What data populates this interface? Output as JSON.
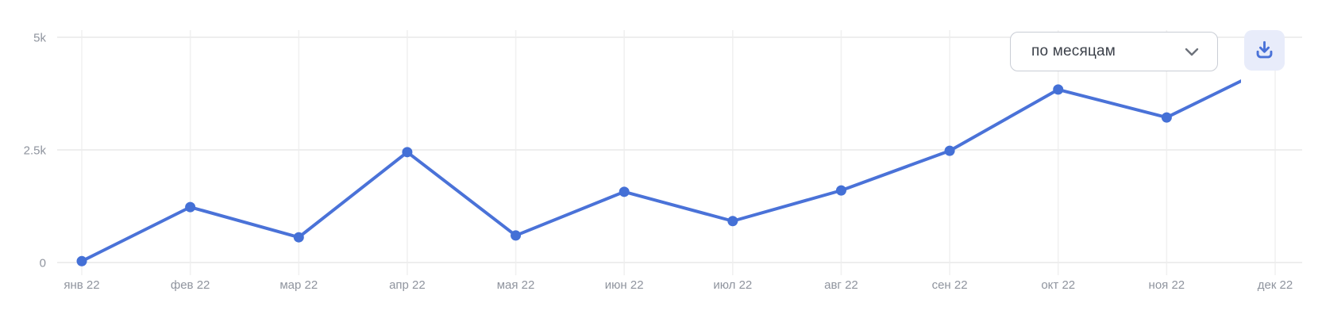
{
  "controls": {
    "period_dropdown": {
      "label": "по месяцам",
      "icon": "chevron-down-icon"
    },
    "download_button": {
      "icon": "download-icon"
    }
  },
  "chart_data": {
    "type": "line",
    "title": "",
    "xlabel": "",
    "ylabel": "",
    "categories": [
      "янв 22",
      "фев 22",
      "мар 22",
      "апр 22",
      "мая 22",
      "июн 22",
      "июл 22",
      "авг 22",
      "сен 22",
      "окт 22",
      "ноя 22",
      "дек 22"
    ],
    "series": [
      {
        "name": "",
        "values": [
          30,
          1230,
          560,
          2450,
          600,
          1570,
          920,
          1600,
          2480,
          3840,
          3220,
          4400
        ]
      }
    ],
    "ylim": [
      0,
      5000
    ],
    "yticks": [
      {
        "value": 0,
        "label": "0"
      },
      {
        "value": 2500,
        "label": "2.5k"
      },
      {
        "value": 5000,
        "label": "5k"
      }
    ],
    "grid": true,
    "legend_position": "none",
    "marker_on_last_point": false,
    "colors": {
      "line": "#4a72d8",
      "marker": "#4470d6",
      "grid_horizontal": "#ececec",
      "grid_vertical": "#f1f1f1",
      "axis_labels": "#8f949e",
      "dropdown_border": "#c9cdd5",
      "dropdown_text": "#3c414a",
      "chevron": "#6d727b",
      "download_bg": "#e8ecfa",
      "download_icon": "#4a72d8"
    }
  }
}
